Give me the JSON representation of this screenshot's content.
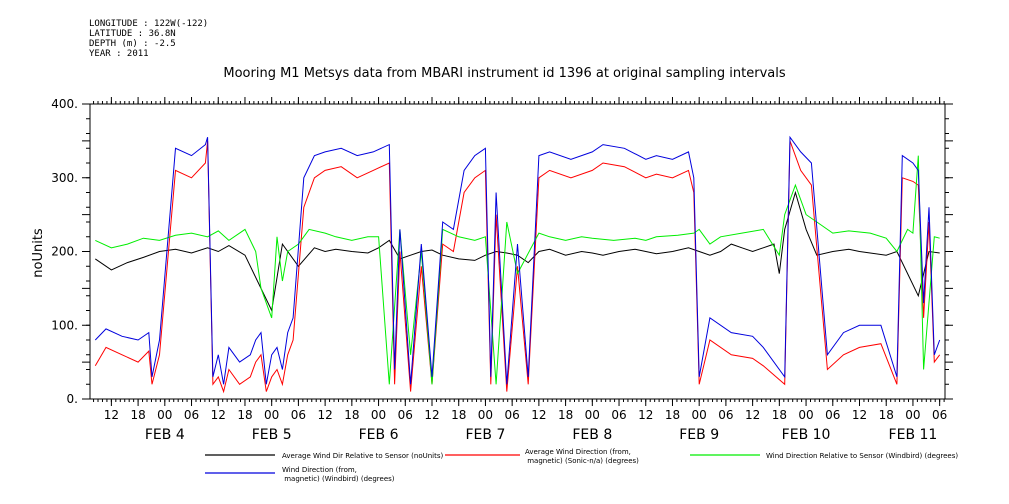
{
  "metadata": [
    "LONGITUDE : 122W(-122)",
    "LATITUDE : 36.8N",
    "DEPTH (m) : -2.5",
    "YEAR : 2011"
  ],
  "chart_data": {
    "type": "line",
    "title": "Mooring M1 Metsys data from MBARI instrument id 1396 at original sampling intervals",
    "ylabel": "noUnits",
    "xlabel": "",
    "ylim": [
      0,
      400
    ],
    "yticks": [
      0,
      100,
      200,
      300,
      400
    ],
    "ytick_labels": [
      "0.",
      "100.",
      "200.",
      "300.",
      "400."
    ],
    "xlim": [
      3.3,
      11.3
    ],
    "x_unit": "days (February 2011)",
    "hour_ticks": [
      3.5,
      3.75,
      4.0,
      4.25,
      4.5,
      4.75,
      5.0,
      5.25,
      5.5,
      5.75,
      6.0,
      6.25,
      6.5,
      6.75,
      7.0,
      7.25,
      7.5,
      7.75,
      8.0,
      8.25,
      8.5,
      8.75,
      9.0,
      9.25,
      9.5,
      9.75,
      10.0,
      10.25,
      10.5,
      10.75,
      11.0,
      11.25
    ],
    "hour_tick_labels": [
      "12",
      "18",
      "00",
      "06",
      "12",
      "18",
      "00",
      "06",
      "12",
      "18",
      "00",
      "06",
      "12",
      "18",
      "00",
      "06",
      "12",
      "18",
      "00",
      "06",
      "12",
      "18",
      "00",
      "06",
      "12",
      "18",
      "00",
      "06",
      "12",
      "18",
      "00",
      "06"
    ],
    "day_labels": [
      {
        "x": 4.0,
        "label": "FEB  4"
      },
      {
        "x": 5.0,
        "label": "FEB  5"
      },
      {
        "x": 6.0,
        "label": "FEB  6"
      },
      {
        "x": 7.0,
        "label": "FEB  7"
      },
      {
        "x": 8.0,
        "label": "FEB  8"
      },
      {
        "x": 9.0,
        "label": "FEB  9"
      },
      {
        "x": 10.0,
        "label": "FEB 10"
      },
      {
        "x": 11.0,
        "label": "FEB 11"
      }
    ],
    "grid": false,
    "legend_position": "bottom",
    "series": [
      {
        "name": "Average Wind Dir Relative to Sensor (noUnits)",
        "color": "#000000",
        "x": [
          3.35,
          3.5,
          3.65,
          3.8,
          3.95,
          4.1,
          4.25,
          4.4,
          4.5,
          4.6,
          4.75,
          4.9,
          5.0,
          5.1,
          5.25,
          5.4,
          5.5,
          5.6,
          5.75,
          5.9,
          6.0,
          6.1,
          6.2,
          6.3,
          6.4,
          6.5,
          6.6,
          6.75,
          6.9,
          7.0,
          7.1,
          7.2,
          7.3,
          7.4,
          7.5,
          7.6,
          7.75,
          7.9,
          8.0,
          8.1,
          8.25,
          8.4,
          8.5,
          8.6,
          8.75,
          8.9,
          9.0,
          9.1,
          9.2,
          9.3,
          9.4,
          9.5,
          9.6,
          9.7,
          9.75,
          9.8,
          9.9,
          10.0,
          10.1,
          10.25,
          10.4,
          10.5,
          10.6,
          10.75,
          10.85,
          10.95,
          11.05,
          11.15,
          11.25
        ],
        "y": [
          190,
          175,
          185,
          192,
          200,
          203,
          198,
          205,
          200,
          208,
          195,
          150,
          120,
          210,
          180,
          205,
          200,
          203,
          200,
          198,
          205,
          215,
          190,
          195,
          200,
          202,
          195,
          190,
          188,
          195,
          200,
          198,
          195,
          185,
          200,
          203,
          195,
          200,
          198,
          195,
          200,
          203,
          200,
          197,
          200,
          205,
          200,
          195,
          200,
          210,
          205,
          200,
          205,
          210,
          170,
          230,
          280,
          230,
          195,
          200,
          203,
          200,
          198,
          195,
          200,
          170,
          140,
          200,
          198
        ]
      },
      {
        "name": "Average Wind Direction (from, magnetic) (Sonic-n/a) (degrees)",
        "color": "#ff0000",
        "x": [
          3.35,
          3.45,
          3.6,
          3.75,
          3.85,
          3.88,
          3.95,
          4.1,
          4.25,
          4.38,
          4.4,
          4.45,
          4.5,
          4.55,
          4.6,
          4.7,
          4.8,
          4.85,
          4.9,
          4.95,
          5.0,
          5.05,
          5.1,
          5.15,
          5.2,
          5.3,
          5.4,
          5.5,
          5.65,
          5.8,
          5.95,
          6.1,
          6.15,
          6.2,
          6.3,
          6.4,
          6.5,
          6.6,
          6.7,
          6.8,
          6.9,
          7.0,
          7.05,
          7.1,
          7.2,
          7.3,
          7.4,
          7.5,
          7.6,
          7.8,
          8.0,
          8.1,
          8.3,
          8.5,
          8.6,
          8.75,
          8.9,
          8.95,
          9.0,
          9.1,
          9.3,
          9.5,
          9.6,
          9.8,
          9.85,
          9.95,
          10.05,
          10.2,
          10.35,
          10.5,
          10.7,
          10.85,
          10.9,
          11.0,
          11.05,
          11.1,
          11.15,
          11.2,
          11.25
        ],
        "y": [
          45,
          70,
          60,
          50,
          65,
          20,
          60,
          310,
          300,
          320,
          350,
          20,
          30,
          10,
          40,
          20,
          30,
          50,
          60,
          10,
          30,
          40,
          20,
          60,
          80,
          260,
          300,
          310,
          315,
          300,
          310,
          320,
          20,
          200,
          10,
          180,
          20,
          210,
          200,
          280,
          300,
          310,
          20,
          250,
          10,
          180,
          20,
          300,
          310,
          300,
          310,
          320,
          315,
          300,
          305,
          300,
          310,
          280,
          20,
          80,
          60,
          55,
          45,
          20,
          350,
          310,
          290,
          40,
          60,
          70,
          75,
          20,
          300,
          295,
          290,
          110,
          240,
          50,
          60
        ]
      },
      {
        "name": "Wind Direction Relative to Sensor (Windbird) (degrees)",
        "color": "#00ee00",
        "x": [
          3.35,
          3.5,
          3.65,
          3.8,
          3.95,
          4.1,
          4.25,
          4.4,
          4.5,
          4.6,
          4.75,
          4.85,
          4.9,
          5.0,
          5.05,
          5.1,
          5.15,
          5.25,
          5.35,
          5.5,
          5.6,
          5.75,
          5.9,
          6.0,
          6.1,
          6.2,
          6.3,
          6.4,
          6.5,
          6.6,
          6.75,
          6.9,
          7.0,
          7.1,
          7.2,
          7.3,
          7.5,
          7.6,
          7.75,
          7.9,
          8.0,
          8.2,
          8.4,
          8.5,
          8.6,
          8.8,
          8.95,
          9.0,
          9.1,
          9.2,
          9.4,
          9.6,
          9.75,
          9.8,
          9.9,
          10.0,
          10.1,
          10.25,
          10.4,
          10.6,
          10.75,
          10.85,
          10.95,
          11.0,
          11.05,
          11.1,
          11.2,
          11.25
        ],
        "y": [
          215,
          205,
          210,
          218,
          215,
          222,
          225,
          220,
          228,
          215,
          230,
          200,
          150,
          110,
          220,
          160,
          200,
          210,
          230,
          225,
          220,
          215,
          220,
          220,
          20,
          230,
          60,
          200,
          20,
          230,
          220,
          215,
          220,
          20,
          240,
          170,
          225,
          220,
          215,
          220,
          218,
          215,
          218,
          215,
          220,
          222,
          225,
          230,
          210,
          220,
          225,
          230,
          195,
          250,
          290,
          250,
          240,
          225,
          228,
          225,
          218,
          200,
          230,
          225,
          330,
          40,
          220,
          218
        ]
      },
      {
        "name": "Wind Direction (from, magnetic) (Windbird) (degrees)",
        "color": "#0000dd",
        "x": [
          3.35,
          3.45,
          3.6,
          3.75,
          3.85,
          3.88,
          3.95,
          4.1,
          4.25,
          4.38,
          4.4,
          4.45,
          4.5,
          4.55,
          4.6,
          4.7,
          4.8,
          4.85,
          4.9,
          4.95,
          5.0,
          5.05,
          5.1,
          5.15,
          5.2,
          5.3,
          5.4,
          5.5,
          5.65,
          5.8,
          5.95,
          6.1,
          6.15,
          6.2,
          6.3,
          6.4,
          6.5,
          6.6,
          6.7,
          6.8,
          6.9,
          7.0,
          7.05,
          7.1,
          7.2,
          7.3,
          7.4,
          7.5,
          7.6,
          7.8,
          8.0,
          8.1,
          8.3,
          8.5,
          8.6,
          8.75,
          8.9,
          8.95,
          9.0,
          9.1,
          9.3,
          9.5,
          9.6,
          9.8,
          9.85,
          9.95,
          10.05,
          10.2,
          10.35,
          10.5,
          10.7,
          10.85,
          10.9,
          11.0,
          11.05,
          11.1,
          11.15,
          11.2,
          11.25
        ],
        "y": [
          80,
          95,
          85,
          80,
          90,
          30,
          80,
          340,
          330,
          345,
          355,
          30,
          60,
          20,
          70,
          50,
          60,
          80,
          90,
          20,
          60,
          70,
          40,
          90,
          110,
          300,
          330,
          335,
          340,
          330,
          335,
          345,
          40,
          230,
          20,
          210,
          30,
          240,
          230,
          310,
          330,
          340,
          30,
          280,
          20,
          210,
          30,
          330,
          335,
          325,
          335,
          345,
          340,
          325,
          330,
          325,
          335,
          300,
          30,
          110,
          90,
          85,
          70,
          30,
          355,
          335,
          320,
          60,
          90,
          100,
          100,
          30,
          330,
          320,
          310,
          130,
          260,
          60,
          80
        ]
      }
    ]
  }
}
